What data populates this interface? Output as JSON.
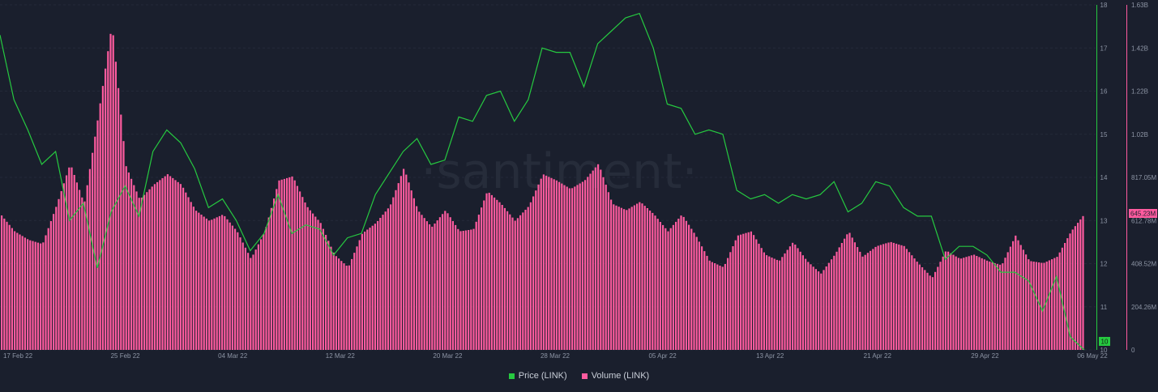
{
  "watermark": "·santiment·",
  "legend": {
    "price_label": "Price (LINK)",
    "volume_label": "Volume (LINK)",
    "price_color": "#26c940",
    "volume_color": "#ff5b9f"
  },
  "badges": {
    "price_current": "10",
    "volume_current": "645.23M"
  },
  "chart_data": {
    "type": "bar",
    "x_ticks": [
      "17 Feb 22",
      "25 Feb 22",
      "04 Mar 22",
      "12 Mar 22",
      "20 Mar 22",
      "28 Mar 22",
      "05 Apr 22",
      "13 Apr 22",
      "21 Apr 22",
      "29 Apr 22",
      "06 May 22"
    ],
    "price_axis": {
      "ticks": [
        "10",
        "11",
        "12",
        "13",
        "14",
        "15",
        "16",
        "17",
        "18"
      ],
      "ylim": [
        10,
        18
      ]
    },
    "volume_axis": {
      "ticks": [
        "0",
        "204.26M",
        "408.52M",
        "612.78M",
        "817.05M",
        "1.02B",
        "1.22B",
        "1.42B",
        "1.63B"
      ],
      "ylim": [
        0,
        1630000000
      ]
    },
    "xlim": [
      "2022-02-17",
      "2022-05-06"
    ],
    "series": [
      {
        "name": "Price (LINK)",
        "type": "line",
        "color": "#26c940",
        "points": [
          [
            "2022-02-17",
            17.3
          ],
          [
            "2022-02-18",
            15.8
          ],
          [
            "2022-02-19",
            15.1
          ],
          [
            "2022-02-20",
            14.3
          ],
          [
            "2022-02-21",
            14.6
          ],
          [
            "2022-02-22",
            13.0
          ],
          [
            "2022-02-23",
            13.4
          ],
          [
            "2022-02-24",
            11.9
          ],
          [
            "2022-02-25",
            13.2
          ],
          [
            "2022-02-26",
            13.8
          ],
          [
            "2022-02-27",
            13.1
          ],
          [
            "2022-02-28",
            14.6
          ],
          [
            "2022-03-01",
            15.1
          ],
          [
            "2022-03-02",
            14.8
          ],
          [
            "2022-03-03",
            14.2
          ],
          [
            "2022-03-04",
            13.3
          ],
          [
            "2022-03-05",
            13.5
          ],
          [
            "2022-03-06",
            13.0
          ],
          [
            "2022-03-07",
            12.3
          ],
          [
            "2022-03-08",
            12.7
          ],
          [
            "2022-03-09",
            13.6
          ],
          [
            "2022-03-10",
            12.7
          ],
          [
            "2022-03-11",
            12.9
          ],
          [
            "2022-03-12",
            12.8
          ],
          [
            "2022-03-13",
            12.2
          ],
          [
            "2022-03-14",
            12.6
          ],
          [
            "2022-03-15",
            12.7
          ],
          [
            "2022-03-16",
            13.6
          ],
          [
            "2022-03-17",
            14.1
          ],
          [
            "2022-03-18",
            14.6
          ],
          [
            "2022-03-19",
            14.9
          ],
          [
            "2022-03-20",
            14.3
          ],
          [
            "2022-03-21",
            14.4
          ],
          [
            "2022-03-22",
            15.4
          ],
          [
            "2022-03-23",
            15.3
          ],
          [
            "2022-03-24",
            15.9
          ],
          [
            "2022-03-25",
            16.0
          ],
          [
            "2022-03-26",
            15.3
          ],
          [
            "2022-03-27",
            15.8
          ],
          [
            "2022-03-28",
            17.0
          ],
          [
            "2022-03-29",
            16.9
          ],
          [
            "2022-03-30",
            16.9
          ],
          [
            "2022-03-31",
            16.1
          ],
          [
            "2022-04-01",
            17.1
          ],
          [
            "2022-04-02",
            17.4
          ],
          [
            "2022-04-03",
            17.7
          ],
          [
            "2022-04-04",
            17.8
          ],
          [
            "2022-04-05",
            17.0
          ],
          [
            "2022-04-06",
            15.7
          ],
          [
            "2022-04-07",
            15.6
          ],
          [
            "2022-04-08",
            15.0
          ],
          [
            "2022-04-09",
            15.1
          ],
          [
            "2022-04-10",
            15.0
          ],
          [
            "2022-04-11",
            13.7
          ],
          [
            "2022-04-12",
            13.5
          ],
          [
            "2022-04-13",
            13.6
          ],
          [
            "2022-04-14",
            13.4
          ],
          [
            "2022-04-15",
            13.6
          ],
          [
            "2022-04-16",
            13.5
          ],
          [
            "2022-04-17",
            13.6
          ],
          [
            "2022-04-18",
            13.9
          ],
          [
            "2022-04-19",
            13.2
          ],
          [
            "2022-04-20",
            13.4
          ],
          [
            "2022-04-21",
            13.9
          ],
          [
            "2022-04-22",
            13.8
          ],
          [
            "2022-04-23",
            13.3
          ],
          [
            "2022-04-24",
            13.1
          ],
          [
            "2022-04-25",
            13.1
          ],
          [
            "2022-04-26",
            12.1
          ],
          [
            "2022-04-27",
            12.4
          ],
          [
            "2022-04-28",
            12.4
          ],
          [
            "2022-04-29",
            12.2
          ],
          [
            "2022-04-30",
            11.8
          ],
          [
            "2022-05-01",
            11.8
          ],
          [
            "2022-05-02",
            11.6
          ],
          [
            "2022-05-03",
            10.9
          ],
          [
            "2022-05-04",
            11.7
          ],
          [
            "2022-05-05",
            10.3
          ],
          [
            "2022-05-06",
            10.0
          ]
        ]
      },
      {
        "name": "Volume (LINK)",
        "type": "bar",
        "color": "#ff5b9f",
        "points": [
          [
            "2022-02-17",
            640000000
          ],
          [
            "2022-02-18",
            560000000
          ],
          [
            "2022-02-19",
            520000000
          ],
          [
            "2022-02-20",
            500000000
          ],
          [
            "2022-02-21",
            680000000
          ],
          [
            "2022-02-22",
            880000000
          ],
          [
            "2022-02-23",
            690000000
          ],
          [
            "2022-02-24",
            1100000000
          ],
          [
            "2022-02-25",
            1540000000
          ],
          [
            "2022-02-26",
            870000000
          ],
          [
            "2022-02-27",
            710000000
          ],
          [
            "2022-02-28",
            780000000
          ],
          [
            "2022-03-01",
            830000000
          ],
          [
            "2022-03-02",
            780000000
          ],
          [
            "2022-03-03",
            660000000
          ],
          [
            "2022-03-04",
            610000000
          ],
          [
            "2022-03-05",
            640000000
          ],
          [
            "2022-03-06",
            560000000
          ],
          [
            "2022-03-07",
            430000000
          ],
          [
            "2022-03-08",
            560000000
          ],
          [
            "2022-03-09",
            800000000
          ],
          [
            "2022-03-10",
            820000000
          ],
          [
            "2022-03-11",
            680000000
          ],
          [
            "2022-03-12",
            600000000
          ],
          [
            "2022-03-13",
            450000000
          ],
          [
            "2022-03-14",
            390000000
          ],
          [
            "2022-03-15",
            550000000
          ],
          [
            "2022-03-16",
            600000000
          ],
          [
            "2022-03-17",
            680000000
          ],
          [
            "2022-03-18",
            860000000
          ],
          [
            "2022-03-19",
            660000000
          ],
          [
            "2022-03-20",
            580000000
          ],
          [
            "2022-03-21",
            660000000
          ],
          [
            "2022-03-22",
            560000000
          ],
          [
            "2022-03-23",
            570000000
          ],
          [
            "2022-03-24",
            750000000
          ],
          [
            "2022-03-25",
            690000000
          ],
          [
            "2022-03-26",
            610000000
          ],
          [
            "2022-03-27",
            680000000
          ],
          [
            "2022-03-28",
            830000000
          ],
          [
            "2022-03-29",
            800000000
          ],
          [
            "2022-03-30",
            760000000
          ],
          [
            "2022-03-31",
            800000000
          ],
          [
            "2022-04-01",
            880000000
          ],
          [
            "2022-04-02",
            690000000
          ],
          [
            "2022-04-03",
            660000000
          ],
          [
            "2022-04-04",
            700000000
          ],
          [
            "2022-04-05",
            640000000
          ],
          [
            "2022-04-06",
            560000000
          ],
          [
            "2022-04-07",
            640000000
          ],
          [
            "2022-04-08",
            540000000
          ],
          [
            "2022-04-09",
            420000000
          ],
          [
            "2022-04-10",
            390000000
          ],
          [
            "2022-04-11",
            540000000
          ],
          [
            "2022-04-12",
            560000000
          ],
          [
            "2022-04-13",
            450000000
          ],
          [
            "2022-04-14",
            420000000
          ],
          [
            "2022-04-15",
            510000000
          ],
          [
            "2022-04-16",
            420000000
          ],
          [
            "2022-04-17",
            360000000
          ],
          [
            "2022-04-18",
            450000000
          ],
          [
            "2022-04-19",
            560000000
          ],
          [
            "2022-04-20",
            440000000
          ],
          [
            "2022-04-21",
            490000000
          ],
          [
            "2022-04-22",
            510000000
          ],
          [
            "2022-04-23",
            490000000
          ],
          [
            "2022-04-24",
            410000000
          ],
          [
            "2022-04-25",
            340000000
          ],
          [
            "2022-04-26",
            470000000
          ],
          [
            "2022-04-27",
            430000000
          ],
          [
            "2022-04-28",
            450000000
          ],
          [
            "2022-04-29",
            420000000
          ],
          [
            "2022-04-30",
            400000000
          ],
          [
            "2022-05-01",
            540000000
          ],
          [
            "2022-05-02",
            420000000
          ],
          [
            "2022-05-03",
            410000000
          ],
          [
            "2022-05-04",
            440000000
          ],
          [
            "2022-05-05",
            560000000
          ],
          [
            "2022-05-06",
            645000000
          ]
        ]
      }
    ],
    "grid": true,
    "legend_position": "bottom-center"
  }
}
